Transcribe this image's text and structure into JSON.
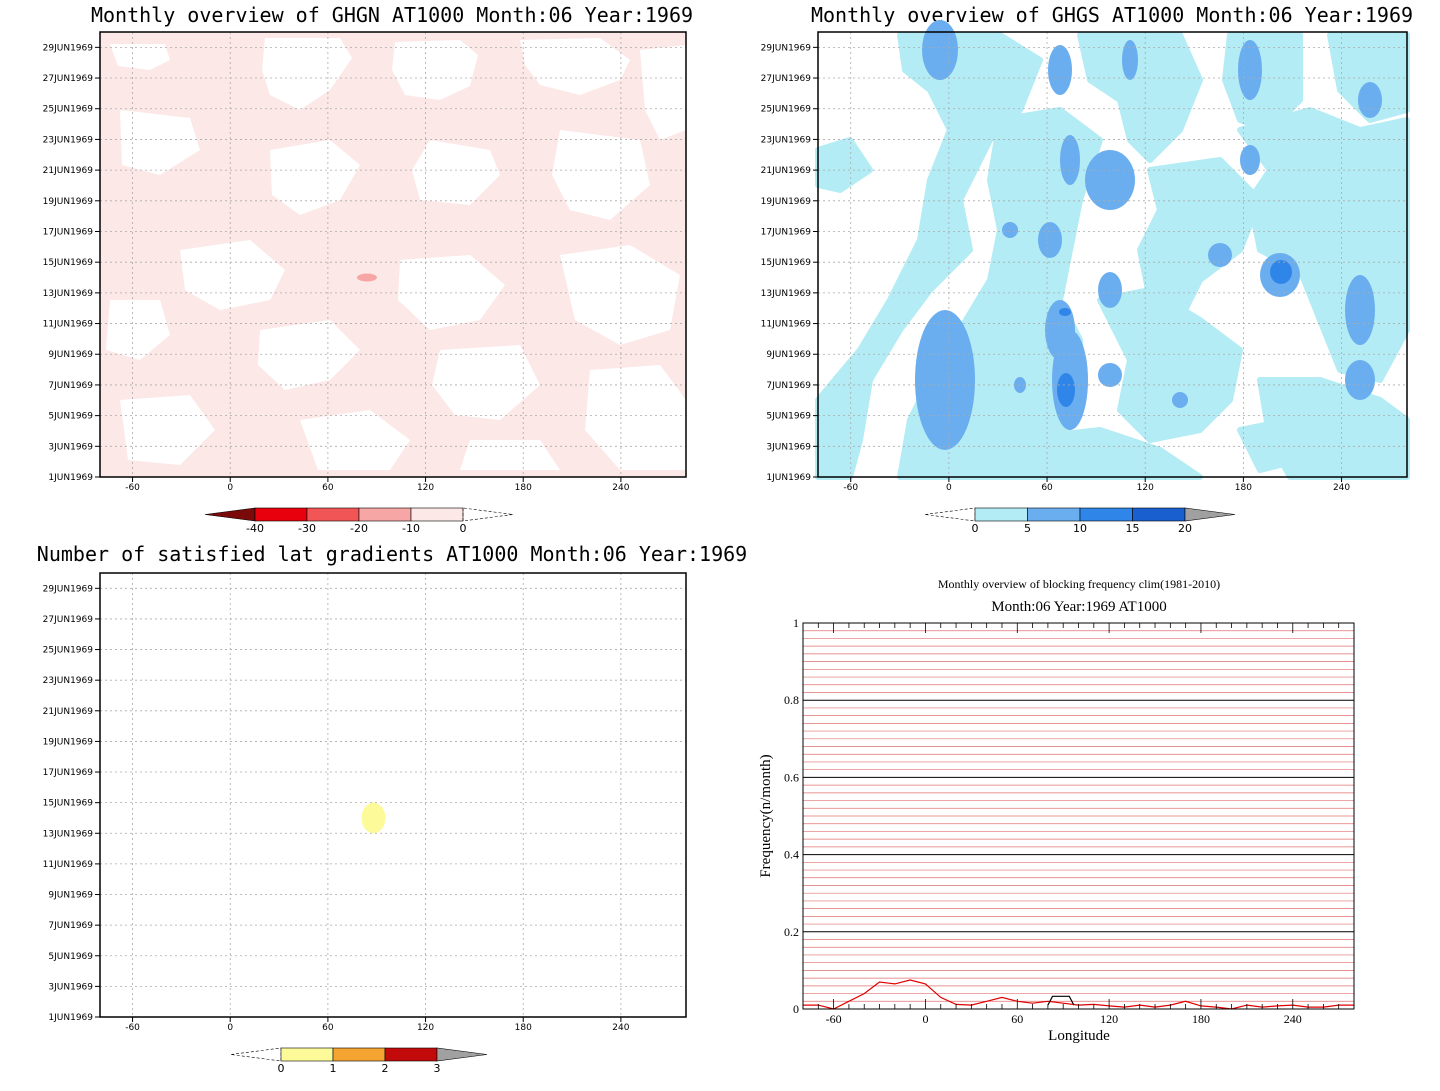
{
  "chart_data": [
    {
      "id": "ghgn",
      "type": "heatmap",
      "title": "Monthly overview of GHGN AT1000 Month:06 Year:1969",
      "x_ticks": [
        -60,
        0,
        60,
        120,
        180,
        240
      ],
      "xlim": [
        -80,
        280
      ],
      "y_ticks": [
        "1JUN1969",
        "3JUN1969",
        "5JUN1969",
        "7JUN1969",
        "9JUN1969",
        "11JUN1969",
        "13JUN1969",
        "15JUN1969",
        "17JUN1969",
        "19JUN1969",
        "21JUN1969",
        "23JUN1969",
        "25JUN1969",
        "27JUN1969",
        "29JUN1969"
      ],
      "grid": true,
      "colorbar": {
        "labels": [
          "-40",
          "-30",
          "-20",
          "-10",
          "0"
        ],
        "colors": [
          "#7a0a0a",
          "#e8000d",
          "#f25555",
          "#f7a6a6",
          "#fde8e8"
        ],
        "extends": "both"
      },
      "fill_color": "#fde8e8",
      "features": [
        {
          "x": 84,
          "y": 14,
          "level": "-10..-20",
          "color": "#f7a6a6"
        }
      ]
    },
    {
      "id": "ghgs",
      "type": "heatmap",
      "title": "Monthly overview of GHGS AT1000 Month:06 Year:1969",
      "x_ticks": [
        -60,
        0,
        60,
        120,
        180,
        240
      ],
      "xlim": [
        -80,
        280
      ],
      "y_ticks": [
        "1JUN1969",
        "3JUN1969",
        "5JUN1969",
        "7JUN1969",
        "9JUN1969",
        "11JUN1969",
        "13JUN1969",
        "15JUN1969",
        "17JUN1969",
        "19JUN1969",
        "21JUN1969",
        "23JUN1969",
        "25JUN1969",
        "27JUN1969",
        "29JUN1969"
      ],
      "grid": true,
      "colorbar": {
        "labels": [
          "0",
          "5",
          "10",
          "15",
          "20"
        ],
        "colors": [
          "#b3ecf5",
          "#6aaef0",
          "#2f86e8",
          "#1a5fd0",
          "#a0a0a0"
        ],
        "extends": "both"
      }
    },
    {
      "id": "satisfied",
      "type": "heatmap",
      "title": "Number of satisfied lat gradients AT1000 Month:06 Year:1969",
      "x_ticks": [
        -60,
        0,
        60,
        120,
        180,
        240
      ],
      "xlim": [
        -80,
        280
      ],
      "y_ticks": [
        "1JUN1969",
        "3JUN1969",
        "5JUN1969",
        "7JUN1969",
        "9JUN1969",
        "11JUN1969",
        "13JUN1969",
        "15JUN1969",
        "17JUN1969",
        "19JUN1969",
        "21JUN1969",
        "23JUN1969",
        "25JUN1969",
        "27JUN1969",
        "29JUN1969"
      ],
      "grid": true,
      "colorbar": {
        "labels": [
          "0",
          "1",
          "2",
          "3"
        ],
        "colors": [
          "#fdfb99",
          "#f5a431",
          "#c20a0a",
          "#a0a0a0"
        ],
        "extends": "both"
      },
      "features": [
        {
          "x": 88,
          "y_range": [
            13,
            15
          ],
          "value": "0-1",
          "color": "#fdfb99"
        }
      ]
    },
    {
      "id": "blocking",
      "type": "line",
      "title": "Monthly overview of blocking frequency clim(1981-2010)",
      "subtitle": "Month:06 Year:1969  AT1000",
      "xlabel": "Longitude",
      "ylabel": "Frequency(n/month)",
      "xlim": [
        -80,
        280
      ],
      "ylim": [
        0,
        1
      ],
      "x_ticks": [
        -60,
        0,
        60,
        120,
        180,
        240
      ],
      "y_ticks": [
        "0",
        "0.2",
        "0.4",
        "0.6",
        "0.8",
        "1"
      ],
      "series": [
        {
          "color": "#e00000",
          "x": [
            -80,
            -70,
            -60,
            -50,
            -40,
            -30,
            -20,
            -10,
            0,
            10,
            20,
            30,
            40,
            50,
            60,
            70,
            80,
            90,
            100,
            110,
            120,
            130,
            140,
            150,
            160,
            170,
            180,
            190,
            200,
            210,
            220,
            230,
            240,
            250,
            260,
            270,
            280
          ],
          "values": [
            0.01,
            0.01,
            0.0,
            0.02,
            0.04,
            0.07,
            0.065,
            0.075,
            0.065,
            0.03,
            0.012,
            0.01,
            0.02,
            0.03,
            0.02,
            0.015,
            0.02,
            0.015,
            0.01,
            0.012,
            0.008,
            0.005,
            0.01,
            0.005,
            0.01,
            0.02,
            0.008,
            0.005,
            0.0,
            0.01,
            0.005,
            0.008,
            0.01,
            0.005,
            0.005,
            0.01,
            0.01
          ]
        },
        {
          "color": "#000000",
          "x": [
            80,
            83,
            94,
            97
          ],
          "values": [
            0.01,
            0.033,
            0.033,
            0.01
          ]
        }
      ]
    }
  ]
}
